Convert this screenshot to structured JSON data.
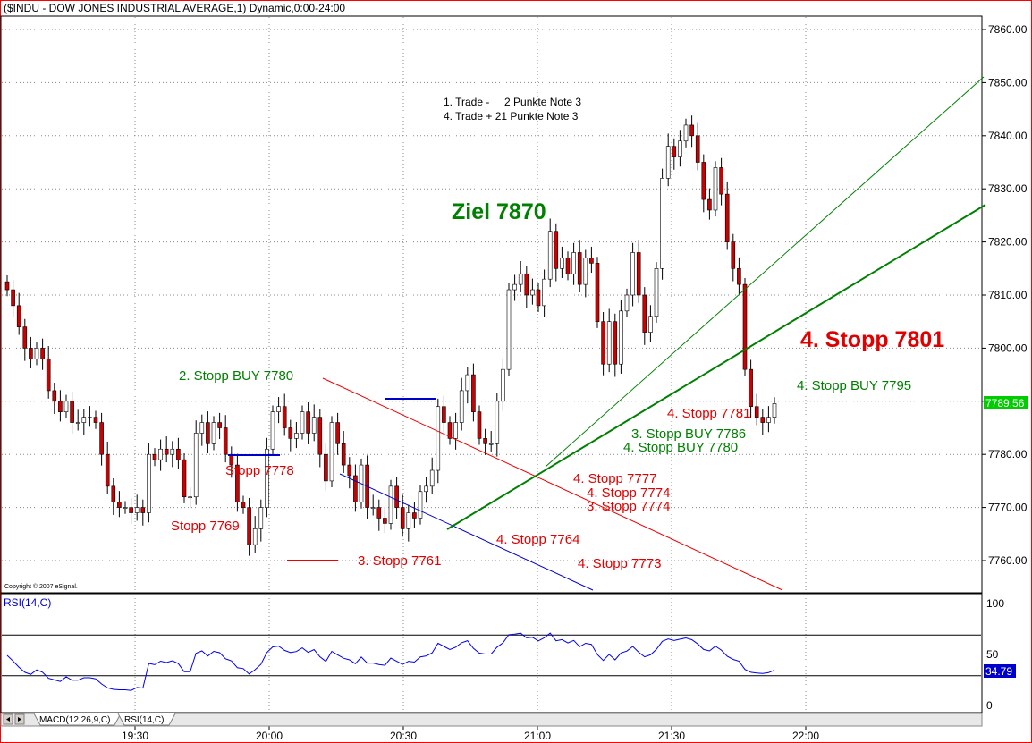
{
  "window_title": "($INDU - DOW JONES INDUSTRIAL AVERAGE,1) Dynamic,0:00-24:00",
  "copyright": "Copyright © 2007 eSignal.",
  "tabs": [
    "MACD(12,26,9,C)",
    "RSI(14,C)"
  ],
  "colors": {
    "up": "#ffffff",
    "down": "#cc0000",
    "green": "#008000",
    "red": "#e00000",
    "blue": "#0000cc",
    "rsi": "#0000ee",
    "border": "#ff0000",
    "last_price_bg": "#00cc00"
  },
  "chart_data": [
    {
      "type": "candlestick",
      "title": "($INDU - DOW JONES INDUSTRIAL AVERAGE,1) Dynamic,0:00-24:00",
      "interval_minutes": 1,
      "x_tick_labels": [
        "19:30",
        "20:00",
        "20:30",
        "21:00",
        "21:30",
        "22:00"
      ],
      "y_tick_labels": [
        "7760.00",
        "7770.00",
        "7780.00",
        "7790.00",
        "7800.00",
        "7810.00",
        "7820.00",
        "7830.00",
        "7840.00",
        "7850.00",
        "7860.00"
      ],
      "ylim": [
        7754,
        7866
      ],
      "last_price": "7789.56",
      "grid": true,
      "close": [
        7811,
        7808,
        7804,
        7800,
        7798,
        7800,
        7798,
        7792,
        7790,
        7788,
        7790,
        7786,
        7786,
        7787,
        7787,
        7786,
        7780,
        7774,
        7771,
        7770,
        7770,
        7769,
        7770,
        7769,
        7780,
        7779,
        7781,
        7780,
        7781,
        7779,
        7772,
        7772,
        7784,
        7786,
        7782,
        7786,
        7785,
        7780,
        7778,
        7771,
        7770,
        7763,
        7766,
        7770,
        7781,
        7788,
        7789,
        7785,
        7783,
        7784,
        7788,
        7784,
        7787,
        7780,
        7775,
        7786,
        7782,
        7778,
        7776,
        7771,
        7778,
        7770,
        7770,
        7768,
        7767,
        7774,
        7770,
        7766,
        7769,
        7768,
        7773,
        7774,
        7777,
        7789,
        7786,
        7783,
        7786,
        7792,
        7795,
        7788,
        7783,
        7782,
        7782,
        7790,
        7796,
        7811,
        7812,
        7814,
        7810,
        7811,
        7808,
        7813,
        7822,
        7815,
        7817,
        7814,
        7818,
        7812,
        7817,
        7816,
        7805,
        7797,
        7805,
        7797,
        7807,
        7810,
        7818,
        7810,
        7803,
        7806,
        7815,
        7832,
        7838,
        7836,
        7839,
        7842,
        7840,
        7835,
        7828,
        7826,
        7834,
        7829,
        7820,
        7815,
        7812,
        7796,
        7789,
        7787,
        7786,
        7787,
        7789.56
      ],
      "rsi_series": {
        "name": "RSI(14,C)",
        "last": "34.79",
        "levels": [
          70,
          30
        ],
        "y_tick_labels": [
          "100",
          "50",
          "0"
        ]
      },
      "annotations": [
        "1. Trade -     2 Punkte Note 3",
        "4. Trade + 21 Punkte Note 3",
        "Ziel 7870",
        "4. Stopp 7801",
        "4. Stopp BUY 7795",
        "4. Stopp 7781",
        "3. Stopp BUY 7786",
        "4. Stopp BUY 7780",
        "2. Stopp BUY 7780",
        "Stopp 7778",
        "Stopp 7769",
        "3. Stopp 7761",
        "4. Stopp 7764",
        "4. Stopp 7777",
        "4. Stopp 7774",
        "3. Stopp 7774",
        "4. Stopp 7773"
      ]
    }
  ]
}
